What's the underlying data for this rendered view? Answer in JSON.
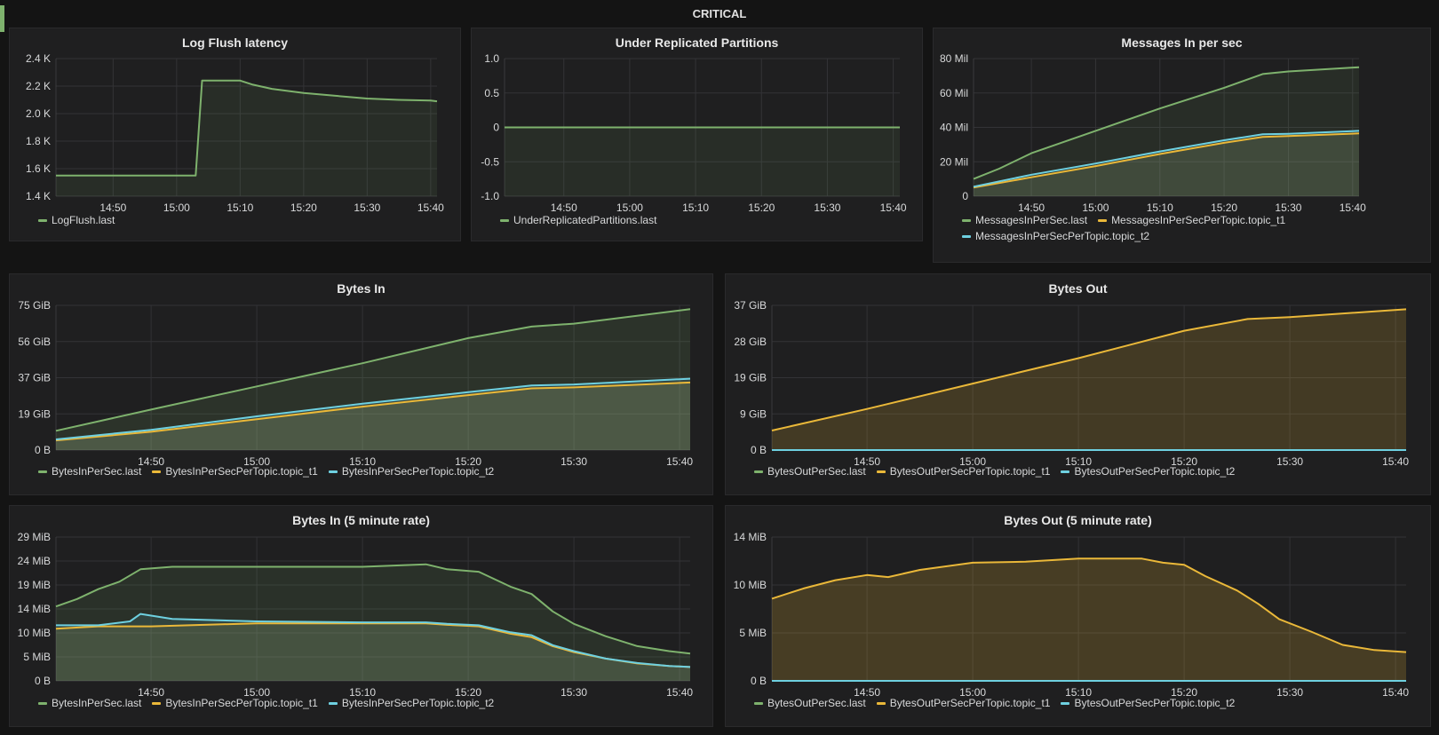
{
  "row": {
    "title": "CRITICAL"
  },
  "colors": {
    "green": "#7eb26d",
    "yellow": "#eab839",
    "cyan": "#6ed0e0"
  },
  "panels": [
    {
      "id": "log-flush-latency",
      "title": "Log Flush latency",
      "xticks": [
        "14:50",
        "15:00",
        "15:10",
        "15:20",
        "15:30",
        "15:40"
      ],
      "yticks": [
        "2.4 K",
        "2.2 K",
        "2.0 K",
        "1.8 K",
        "1.6 K",
        "1.4 K"
      ],
      "legend": [
        {
          "name": "LogFlush.last",
          "color": "#7eb26d"
        }
      ]
    },
    {
      "id": "under-replicated-partitions",
      "title": "Under Replicated Partitions",
      "xticks": [
        "14:50",
        "15:00",
        "15:10",
        "15:20",
        "15:30",
        "15:40"
      ],
      "yticks": [
        "1.0",
        "0.5",
        "0",
        "-0.5",
        "-1.0"
      ],
      "legend": [
        {
          "name": "UnderReplicatedPartitions.last",
          "color": "#7eb26d"
        }
      ]
    },
    {
      "id": "messages-in-per-sec",
      "title": "Messages In per sec",
      "xticks": [
        "14:50",
        "15:00",
        "15:10",
        "15:20",
        "15:30",
        "15:40"
      ],
      "yticks": [
        "80 Mil",
        "60 Mil",
        "40 Mil",
        "20 Mil",
        "0"
      ],
      "legend": [
        {
          "name": "MessagesInPerSec.last",
          "color": "#7eb26d"
        },
        {
          "name": "MessagesInPerSecPerTopic.topic_t1",
          "color": "#eab839"
        },
        {
          "name": "MessagesInPerSecPerTopic.topic_t2",
          "color": "#6ed0e0"
        }
      ]
    },
    {
      "id": "bytes-in",
      "title": "Bytes In",
      "xticks": [
        "14:50",
        "15:00",
        "15:10",
        "15:20",
        "15:30",
        "15:40"
      ],
      "yticks": [
        "75 GiB",
        "56 GiB",
        "37 GiB",
        "19 GiB",
        "0 B"
      ],
      "legend": [
        {
          "name": "BytesInPerSec.last",
          "color": "#7eb26d"
        },
        {
          "name": "BytesInPerSecPerTopic.topic_t1",
          "color": "#eab839"
        },
        {
          "name": "BytesInPerSecPerTopic.topic_t2",
          "color": "#6ed0e0"
        }
      ]
    },
    {
      "id": "bytes-out",
      "title": "Bytes Out",
      "xticks": [
        "14:50",
        "15:00",
        "15:10",
        "15:20",
        "15:30",
        "15:40"
      ],
      "yticks": [
        "37 GiB",
        "28 GiB",
        "19 GiB",
        "9 GiB",
        "0 B"
      ],
      "legend": [
        {
          "name": "BytesOutPerSec.last",
          "color": "#7eb26d"
        },
        {
          "name": "BytesOutPerSecPerTopic.topic_t1",
          "color": "#eab839"
        },
        {
          "name": "BytesOutPerSecPerTopic.topic_t2",
          "color": "#6ed0e0"
        }
      ]
    },
    {
      "id": "bytes-in-5m",
      "title": "Bytes In (5 minute rate)",
      "xticks": [
        "14:50",
        "15:00",
        "15:10",
        "15:20",
        "15:30",
        "15:40"
      ],
      "yticks": [
        "29 MiB",
        "24 MiB",
        "19 MiB",
        "14 MiB",
        "10 MiB",
        "5 MiB",
        "0 B"
      ],
      "legend": [
        {
          "name": "BytesInPerSec.last",
          "color": "#7eb26d"
        },
        {
          "name": "BytesInPerSecPerTopic.topic_t1",
          "color": "#eab839"
        },
        {
          "name": "BytesInPerSecPerTopic.topic_t2",
          "color": "#6ed0e0"
        }
      ]
    },
    {
      "id": "bytes-out-5m",
      "title": "Bytes Out (5 minute rate)",
      "xticks": [
        "14:50",
        "15:00",
        "15:10",
        "15:20",
        "15:30",
        "15:40"
      ],
      "yticks": [
        "14 MiB",
        "10 MiB",
        "5 MiB",
        "0 B"
      ],
      "legend": [
        {
          "name": "BytesOutPerSec.last",
          "color": "#7eb26d"
        },
        {
          "name": "BytesOutPerSecPerTopic.topic_t1",
          "color": "#eab839"
        },
        {
          "name": "BytesOutPerSecPerTopic.topic_t2",
          "color": "#6ed0e0"
        }
      ]
    }
  ],
  "chart_data": [
    {
      "type": "line",
      "title": "Log Flush latency",
      "x_range": [
        "14:41",
        "15:41"
      ],
      "ylim": [
        1400,
        2400
      ],
      "series": [
        {
          "name": "LogFlush.last",
          "color": "#7eb26d",
          "points": [
            [
              "14:41",
              1550
            ],
            [
              "15:03",
              1550
            ],
            [
              "15:04",
              2240
            ],
            [
              "15:10",
              2240
            ],
            [
              "15:12",
              2210
            ],
            [
              "15:15",
              2180
            ],
            [
              "15:20",
              2150
            ],
            [
              "15:25",
              2130
            ],
            [
              "15:30",
              2110
            ],
            [
              "15:35",
              2100
            ],
            [
              "15:40",
              2095
            ],
            [
              "15:41",
              2090
            ]
          ]
        }
      ]
    },
    {
      "type": "line",
      "title": "Under Replicated Partitions",
      "x_range": [
        "14:41",
        "15:41"
      ],
      "ylim": [
        -1,
        1
      ],
      "series": [
        {
          "name": "UnderReplicatedPartitions.last",
          "color": "#7eb26d",
          "points": [
            [
              "14:41",
              0
            ],
            [
              "15:41",
              0
            ]
          ]
        }
      ]
    },
    {
      "type": "line",
      "title": "Messages In per sec",
      "x_range": [
        "14:41",
        "15:41"
      ],
      "ylim": [
        0,
        80000000
      ],
      "series": [
        {
          "name": "MessagesInPerSec.last",
          "color": "#7eb26d",
          "points": [
            [
              "14:41",
              10000000
            ],
            [
              "14:45",
              16000000
            ],
            [
              "14:50",
              25000000
            ],
            [
              "15:00",
              38000000
            ],
            [
              "15:10",
              51000000
            ],
            [
              "15:20",
              63000000
            ],
            [
              "15:26",
              71000000
            ],
            [
              "15:30",
              72500000
            ],
            [
              "15:41",
              75000000
            ]
          ]
        },
        {
          "name": "MessagesInPerSecPerTopic.topic_t1",
          "color": "#eab839",
          "points": [
            [
              "14:41",
              5000000
            ],
            [
              "14:50",
              11000000
            ],
            [
              "15:00",
              17500000
            ],
            [
              "15:10",
              24500000
            ],
            [
              "15:20",
              31000000
            ],
            [
              "15:26",
              34500000
            ],
            [
              "15:30",
              35000000
            ],
            [
              "15:41",
              36500000
            ]
          ]
        },
        {
          "name": "MessagesInPerSecPerTopic.topic_t2",
          "color": "#6ed0e0",
          "points": [
            [
              "14:41",
              5500000
            ],
            [
              "14:50",
              12500000
            ],
            [
              "15:00",
              19000000
            ],
            [
              "15:10",
              26000000
            ],
            [
              "15:20",
              32500000
            ],
            [
              "15:26",
              36000000
            ],
            [
              "15:30",
              36300000
            ],
            [
              "15:41",
              38000000
            ]
          ]
        }
      ]
    },
    {
      "type": "area",
      "title": "Bytes In",
      "x_range": [
        "14:41",
        "15:41"
      ],
      "ylim": [
        0,
        75
      ],
      "series": [
        {
          "name": "BytesInPerSec.last",
          "color": "#7eb26d",
          "points": [
            [
              "14:41",
              10
            ],
            [
              "14:50",
              21
            ],
            [
              "15:00",
              33
            ],
            [
              "15:10",
              45
            ],
            [
              "15:20",
              58
            ],
            [
              "15:26",
              64
            ],
            [
              "15:30",
              65.5
            ],
            [
              "15:41",
              73
            ]
          ]
        },
        {
          "name": "BytesInPerSecPerTopic.topic_t1",
          "color": "#eab839",
          "points": [
            [
              "14:41",
              5
            ],
            [
              "14:50",
              9.5
            ],
            [
              "15:00",
              16
            ],
            [
              "15:10",
              22.5
            ],
            [
              "15:20",
              28.5
            ],
            [
              "15:26",
              32
            ],
            [
              "15:30",
              32.5
            ],
            [
              "15:41",
              35
            ]
          ]
        },
        {
          "name": "BytesInPerSecPerTopic.topic_t2",
          "color": "#6ed0e0",
          "points": [
            [
              "14:41",
              5.5
            ],
            [
              "14:50",
              10.5
            ],
            [
              "15:00",
              17.5
            ],
            [
              "15:10",
              24
            ],
            [
              "15:20",
              30
            ],
            [
              "15:26",
              33.5
            ],
            [
              "15:30",
              34
            ],
            [
              "15:41",
              37
            ]
          ]
        }
      ]
    },
    {
      "type": "area",
      "title": "Bytes Out",
      "x_range": [
        "14:41",
        "15:41"
      ],
      "ylim": [
        0,
        37
      ],
      "series": [
        {
          "name": "BytesOutPerSec.last",
          "color": "#7eb26d",
          "points": [
            [
              "14:41",
              0
            ],
            [
              "15:41",
              0
            ]
          ]
        },
        {
          "name": "BytesOutPerSecPerTopic.topic_t1",
          "color": "#eab839",
          "points": [
            [
              "14:41",
              5
            ],
            [
              "14:50",
              10.5
            ],
            [
              "15:00",
              17
            ],
            [
              "15:10",
              23.5
            ],
            [
              "15:20",
              30.5
            ],
            [
              "15:26",
              33.5
            ],
            [
              "15:30",
              34
            ],
            [
              "15:41",
              36
            ]
          ]
        },
        {
          "name": "BytesOutPerSecPerTopic.topic_t2",
          "color": "#6ed0e0",
          "points": [
            [
              "14:41",
              0
            ],
            [
              "15:41",
              0
            ]
          ]
        }
      ]
    },
    {
      "type": "area",
      "title": "Bytes In (5 minute rate)",
      "x_range": [
        "14:41",
        "15:41"
      ],
      "ylim": [
        0,
        29
      ],
      "series": [
        {
          "name": "BytesInPerSec.last",
          "color": "#7eb26d",
          "points": [
            [
              "14:41",
              15
            ],
            [
              "14:43",
              16.5
            ],
            [
              "14:45",
              18.5
            ],
            [
              "14:47",
              20
            ],
            [
              "14:49",
              22.5
            ],
            [
              "14:52",
              23
            ],
            [
              "15:00",
              23
            ],
            [
              "15:10",
              23
            ],
            [
              "15:16",
              23.5
            ],
            [
              "15:18",
              22.5
            ],
            [
              "15:21",
              22
            ],
            [
              "15:24",
              19
            ],
            [
              "15:26",
              17.5
            ],
            [
              "15:28",
              14
            ],
            [
              "15:30",
              11.5
            ],
            [
              "15:33",
              9
            ],
            [
              "15:36",
              7
            ],
            [
              "15:39",
              6
            ],
            [
              "15:41",
              5.5
            ]
          ]
        },
        {
          "name": "BytesInPerSecPerTopic.topic_t1",
          "color": "#eab839",
          "points": [
            [
              "14:41",
              10.5
            ],
            [
              "14:45",
              11
            ],
            [
              "14:50",
              11
            ],
            [
              "14:55",
              11.3
            ],
            [
              "15:00",
              11.6
            ],
            [
              "15:10",
              11.6
            ],
            [
              "15:16",
              11.6
            ],
            [
              "15:18",
              11.3
            ],
            [
              "15:21",
              11
            ],
            [
              "15:24",
              9.5
            ],
            [
              "15:26",
              8.8
            ],
            [
              "15:28",
              7
            ],
            [
              "15:30",
              5.8
            ],
            [
              "15:33",
              4.5
            ],
            [
              "15:36",
              3.5
            ],
            [
              "15:39",
              3
            ],
            [
              "15:41",
              2.8
            ]
          ]
        },
        {
          "name": "BytesInPerSecPerTopic.topic_t2",
          "color": "#6ed0e0",
          "points": [
            [
              "14:41",
              11.2
            ],
            [
              "14:45",
              11.2
            ],
            [
              "14:48",
              12
            ],
            [
              "14:49",
              13.5
            ],
            [
              "14:52",
              12.5
            ],
            [
              "15:00",
              12
            ],
            [
              "15:10",
              11.8
            ],
            [
              "15:16",
              11.8
            ],
            [
              "15:18",
              11.5
            ],
            [
              "15:21",
              11.2
            ],
            [
              "15:24",
              9.8
            ],
            [
              "15:26",
              9.2
            ],
            [
              "15:28",
              7.2
            ],
            [
              "15:30",
              6
            ],
            [
              "15:33",
              4.5
            ],
            [
              "15:36",
              3.6
            ],
            [
              "15:39",
              3
            ],
            [
              "15:41",
              2.8
            ]
          ]
        }
      ]
    },
    {
      "type": "area",
      "title": "Bytes Out (5 minute rate)",
      "x_range": [
        "14:41",
        "15:41"
      ],
      "ylim": [
        0,
        14
      ],
      "series": [
        {
          "name": "BytesOutPerSec.last",
          "color": "#7eb26d",
          "points": [
            [
              "14:41",
              0
            ],
            [
              "15:41",
              0
            ]
          ]
        },
        {
          "name": "BytesOutPerSecPerTopic.topic_t1",
          "color": "#eab839",
          "points": [
            [
              "14:41",
              8
            ],
            [
              "14:44",
              9
            ],
            [
              "14:47",
              9.8
            ],
            [
              "14:50",
              10.3
            ],
            [
              "14:52",
              10.1
            ],
            [
              "14:55",
              10.8
            ],
            [
              "15:00",
              11.5
            ],
            [
              "15:05",
              11.6
            ],
            [
              "15:10",
              11.9
            ],
            [
              "15:16",
              11.9
            ],
            [
              "15:18",
              11.5
            ],
            [
              "15:20",
              11.3
            ],
            [
              "15:22",
              10.2
            ],
            [
              "15:25",
              8.8
            ],
            [
              "15:27",
              7.5
            ],
            [
              "15:29",
              6
            ],
            [
              "15:32",
              4.8
            ],
            [
              "15:35",
              3.5
            ],
            [
              "15:38",
              3
            ],
            [
              "15:41",
              2.8
            ]
          ]
        },
        {
          "name": "BytesOutPerSecPerTopic.topic_t2",
          "color": "#6ed0e0",
          "points": [
            [
              "14:41",
              0
            ],
            [
              "15:41",
              0
            ]
          ]
        }
      ]
    }
  ]
}
